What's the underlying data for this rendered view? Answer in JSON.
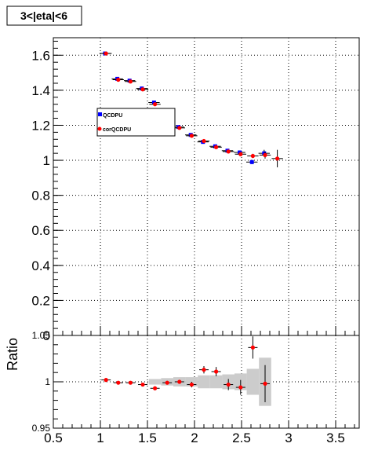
{
  "chart_data": [
    {
      "type": "scatter",
      "panel": "main",
      "title": "3<|eta|<6",
      "xlabel": "",
      "ylabel": "",
      "xlim": [
        0.5,
        3.75
      ],
      "ylim": [
        0,
        1.7
      ],
      "x_ticks": [
        "0.5",
        "1",
        "1.5",
        "2",
        "2.5",
        "3",
        "3.5"
      ],
      "y_ticks": [
        "0",
        "0.2",
        "0.4",
        "0.6",
        "0.8",
        "1",
        "1.2",
        "1.4",
        "1.6"
      ],
      "grid": true,
      "legend_position": "upper-left",
      "series": [
        {
          "name": "QCDPU",
          "color": "#0000ff",
          "marker": "square",
          "x": [
            1.05,
            1.18,
            1.31,
            1.44,
            1.57,
            1.7,
            1.83,
            1.96,
            2.09,
            2.22,
            2.35,
            2.48,
            2.61,
            2.74
          ],
          "y": [
            1.61,
            1.465,
            1.455,
            1.41,
            1.33,
            1.26,
            1.19,
            1.145,
            1.105,
            1.08,
            1.055,
            1.045,
            0.99,
            1.04
          ],
          "xerr": [
            0.06,
            0.06,
            0.06,
            0.06,
            0.06,
            0.06,
            0.06,
            0.06,
            0.06,
            0.06,
            0.06,
            0.06,
            0.06,
            0.06
          ],
          "yerr": [
            0.004,
            0.004,
            0.004,
            0.005,
            0.006,
            0.006,
            0.006,
            0.006,
            0.006,
            0.007,
            0.008,
            0.01,
            0.012,
            0.02
          ]
        },
        {
          "name": "corQCDPU",
          "color": "#ff0000",
          "marker": "circle",
          "x": [
            1.06,
            1.19,
            1.32,
            1.45,
            1.58,
            1.71,
            1.84,
            1.97,
            2.1,
            2.23,
            2.36,
            2.49,
            2.62,
            2.75,
            2.88
          ],
          "y": [
            1.61,
            1.46,
            1.45,
            1.405,
            1.32,
            1.25,
            1.185,
            1.14,
            1.11,
            1.075,
            1.05,
            1.035,
            1.025,
            1.03,
            1.01
          ],
          "xerr": [
            0.06,
            0.06,
            0.06,
            0.06,
            0.06,
            0.06,
            0.06,
            0.06,
            0.06,
            0.06,
            0.06,
            0.06,
            0.06,
            0.06,
            0.06
          ],
          "yerr": [
            0.004,
            0.004,
            0.004,
            0.005,
            0.006,
            0.006,
            0.006,
            0.006,
            0.006,
            0.007,
            0.008,
            0.01,
            0.012,
            0.02,
            0.05
          ]
        }
      ]
    },
    {
      "type": "scatter",
      "panel": "ratio",
      "xlabel": "",
      "ylabel": "Ratio",
      "xlim": [
        0.5,
        3.75
      ],
      "ylim": [
        0.95,
        1.05
      ],
      "x_ticks": [
        "0.5",
        "1",
        "1.5",
        "2",
        "2.5",
        "3",
        "3.5"
      ],
      "y_ticks": [
        "0.95",
        "1",
        "1.05"
      ],
      "grid": true,
      "series": [
        {
          "name": "",
          "color": "#ff0000",
          "marker": "circle",
          "x": [
            1.06,
            1.19,
            1.32,
            1.45,
            1.58,
            1.71,
            1.84,
            1.97,
            2.1,
            2.23,
            2.36,
            2.49,
            2.62,
            2.75
          ],
          "y": [
            1.002,
            0.999,
            0.999,
            0.997,
            0.993,
            0.999,
            1.0,
            0.997,
            1.013,
            1.011,
            0.997,
            0.994,
            1.037,
            0.998
          ],
          "xerr": [
            0.05,
            0.05,
            0.05,
            0.05,
            0.05,
            0.05,
            0.05,
            0.05,
            0.05,
            0.05,
            0.05,
            0.05,
            0.05,
            0.05
          ],
          "yerr": [
            0.001,
            0.001,
            0.001,
            0.002,
            0.002,
            0.002,
            0.002,
            0.003,
            0.004,
            0.005,
            0.006,
            0.008,
            0.012,
            0.02
          ]
        }
      ],
      "bands": {
        "color": "#cccccc",
        "x": [
          1.58,
          1.71,
          1.84,
          1.97,
          2.1,
          2.23,
          2.36,
          2.49,
          2.62,
          2.75
        ],
        "lo": [
          0.997,
          0.996,
          0.995,
          0.995,
          0.993,
          0.993,
          0.992,
          0.991,
          0.986,
          0.974
        ],
        "hi": [
          1.003,
          1.004,
          1.005,
          1.005,
          1.007,
          1.007,
          1.008,
          1.009,
          1.014,
          1.026
        ]
      }
    }
  ]
}
